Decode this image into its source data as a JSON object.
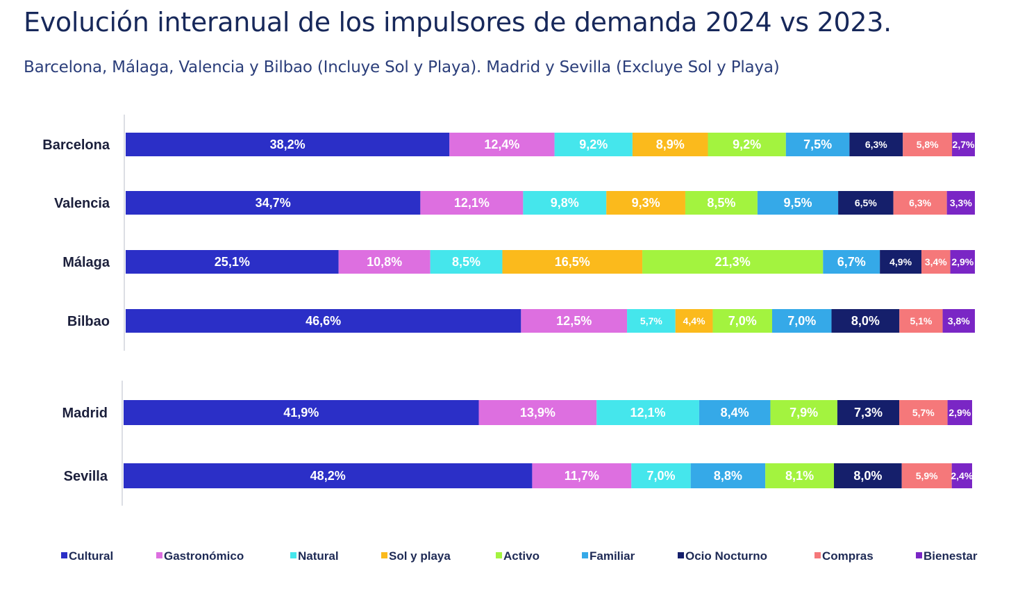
{
  "title": "Evolución interanual de los impulsores de demanda 2024 vs 2023.",
  "subtitle": "Barcelona, Málaga, Valencia y Bilbao (Incluye Sol y Playa). Madrid  y Sevilla (Excluye Sol y Playa)",
  "chart_data": [
    {
      "type": "bar",
      "orientation": "horizontal",
      "stacked": true,
      "categories": [
        "Barcelona",
        "Valencia",
        "Málaga",
        "Bilbao"
      ],
      "series": [
        {
          "name": "Cultural",
          "color": "#2b2fc7",
          "values": [
            38.2,
            34.7,
            25.1,
            46.6
          ],
          "labels": [
            "38,2%",
            "34,7%",
            "25,1%",
            "46,6%"
          ]
        },
        {
          "name": "Gastronómico",
          "color": "#dd6fe0",
          "values": [
            12.4,
            12.1,
            10.8,
            12.5
          ],
          "labels": [
            "12,4%",
            "12,1%",
            "10,8%",
            "12,5%"
          ]
        },
        {
          "name": "Natural",
          "color": "#45e6ec",
          "values": [
            9.2,
            9.8,
            8.5,
            5.7
          ],
          "labels": [
            "9,2%",
            "9,8%",
            "8,5%",
            "5,7%"
          ]
        },
        {
          "name": "Sol y playa",
          "color": "#fbba1c",
          "values": [
            8.9,
            9.3,
            16.5,
            4.4
          ],
          "labels": [
            "8,9%",
            "9,3%",
            "16,5%",
            "4,4%"
          ]
        },
        {
          "name": "Activo",
          "color": "#a3f33f",
          "values": [
            9.2,
            8.5,
            21.3,
            7.0
          ],
          "labels": [
            "9,2%",
            "8,5%",
            "21,3%",
            "7,0%"
          ]
        },
        {
          "name": "Familiar",
          "color": "#35a9e8",
          "values": [
            7.5,
            9.5,
            6.7,
            7.0
          ],
          "labels": [
            "7,5%",
            "9,5%",
            "6,7%",
            "7,0%"
          ]
        },
        {
          "name": "Ocio Nocturno",
          "color": "#151f6b",
          "values": [
            6.3,
            6.5,
            4.9,
            8.0
          ],
          "labels": [
            "6,3%",
            "6,5%",
            "4,9%",
            "8,0%"
          ]
        },
        {
          "name": "Compras",
          "color": "#f5787a",
          "values": [
            5.8,
            6.3,
            3.4,
            5.1
          ],
          "labels": [
            "5,8%",
            "6,3%",
            "3,4%",
            "5,1%"
          ]
        },
        {
          "name": "Bienestar",
          "color": "#7a26c5",
          "values": [
            2.7,
            3.3,
            2.9,
            3.8
          ],
          "labels": [
            "2,7%",
            "3,3%",
            "2,9%",
            "3,8%"
          ]
        }
      ]
    },
    {
      "type": "bar",
      "orientation": "horizontal",
      "stacked": true,
      "categories": [
        "Madrid",
        "Sevilla"
      ],
      "series": [
        {
          "name": "Cultural",
          "color": "#2b2fc7",
          "values": [
            41.9,
            48.2
          ],
          "labels": [
            "41,9%",
            "48,2%"
          ]
        },
        {
          "name": "Gastronómico",
          "color": "#dd6fe0",
          "values": [
            13.9,
            11.7
          ],
          "labels": [
            "13,9%",
            "11,7%"
          ]
        },
        {
          "name": "Natural",
          "color": "#45e6ec",
          "values": [
            12.1,
            7.0
          ],
          "labels": [
            "12,1%",
            "7,0%"
          ]
        },
        {
          "name": "Familiar",
          "color": "#35a9e8",
          "values": [
            8.4,
            8.8
          ],
          "labels": [
            "8,4%",
            "8,8%"
          ]
        },
        {
          "name": "Activo",
          "color": "#a3f33f",
          "values": [
            7.9,
            8.1
          ],
          "labels": [
            "7,9%",
            "8,1%"
          ]
        },
        {
          "name": "Ocio Nocturno",
          "color": "#151f6b",
          "values": [
            7.3,
            8.0
          ],
          "labels": [
            "7,3%",
            "8,0%"
          ]
        },
        {
          "name": "Compras",
          "color": "#f5787a",
          "values": [
            5.7,
            5.9
          ],
          "labels": [
            "5,7%",
            "5,9%"
          ]
        },
        {
          "name": "Bienestar",
          "color": "#7a26c5",
          "values": [
            2.9,
            2.4
          ],
          "labels": [
            "2,9%",
            "2,4%"
          ]
        }
      ]
    }
  ],
  "legend": {
    "placement": "bottom",
    "items": [
      {
        "name": "Cultural",
        "color": "#2b2fc7"
      },
      {
        "name": "Gastronómico",
        "color": "#dd6fe0"
      },
      {
        "name": "Natural",
        "color": "#45e6ec"
      },
      {
        "name": "Sol y playa",
        "color": "#fbba1c"
      },
      {
        "name": "Activo",
        "color": "#a3f33f"
      },
      {
        "name": "Familiar",
        "color": "#35a9e8"
      },
      {
        "name": "Ocio Nocturno",
        "color": "#151f6b"
      },
      {
        "name": "Compras",
        "color": "#f5787a"
      },
      {
        "name": "Bienestar",
        "color": "#7a26c5"
      }
    ]
  }
}
